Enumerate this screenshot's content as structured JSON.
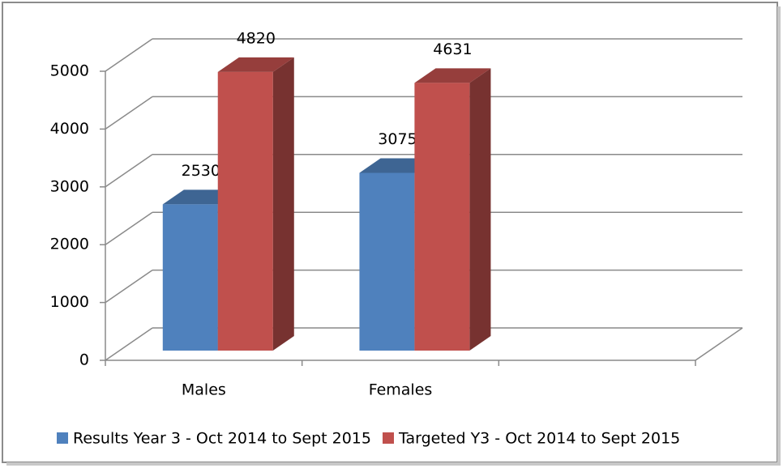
{
  "chart_data": {
    "type": "bar3d",
    "categories": [
      "Males",
      "Females",
      null
    ],
    "series": [
      {
        "name": "Results Year 3 - Oct 2014 to Sept 2015",
        "color": "#4f81bd",
        "values": [
          2530,
          3075,
          null
        ]
      },
      {
        "name": "Targeted Y3 - Oct 2014 to Sept 2015",
        "color": "#c0504d",
        "values": [
          4820,
          4631,
          null
        ]
      }
    ],
    "ylim": [
      0,
      5000
    ],
    "yticks": [
      0,
      1000,
      2000,
      3000,
      4000,
      5000
    ],
    "grid": true,
    "legend": "bottom"
  }
}
